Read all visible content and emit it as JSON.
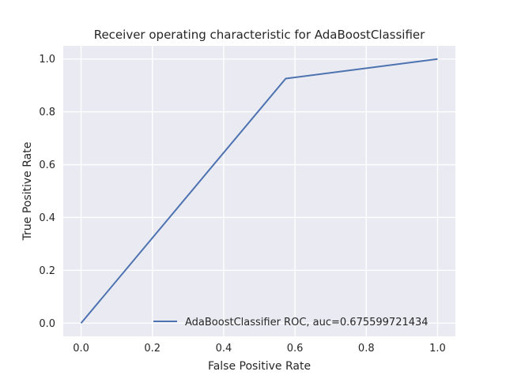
{
  "chart_data": {
    "type": "line",
    "title": "Receiver operating characteristic for AdaBoostClassifier",
    "xlabel": "False Positive Rate",
    "ylabel": "True Positive Rate",
    "xlim": [
      -0.05,
      1.05
    ],
    "ylim": [
      -0.05,
      1.05
    ],
    "xticks": [
      0.0,
      0.2,
      0.4,
      0.6,
      0.8,
      1.0
    ],
    "yticks": [
      0.0,
      0.2,
      0.4,
      0.6,
      0.8,
      1.0
    ],
    "xtick_labels": [
      "0.0",
      "0.2",
      "0.4",
      "0.6",
      "0.8",
      "1.0"
    ],
    "ytick_labels": [
      "0.0",
      "0.2",
      "0.4",
      "0.6",
      "0.8",
      "1.0"
    ],
    "grid": true,
    "legend_position": "lower-right",
    "series": [
      {
        "name": "AdaBoostClassifier ROC, auc=0.675599721434",
        "color": "#4c72b0",
        "x": [
          0.0,
          0.574,
          1.0
        ],
        "y": [
          0.0,
          0.926,
          1.0
        ]
      }
    ]
  },
  "style": {
    "plot_background": "#eaeaf2",
    "grid_color": "#ffffff",
    "text_color": "#262626"
  }
}
